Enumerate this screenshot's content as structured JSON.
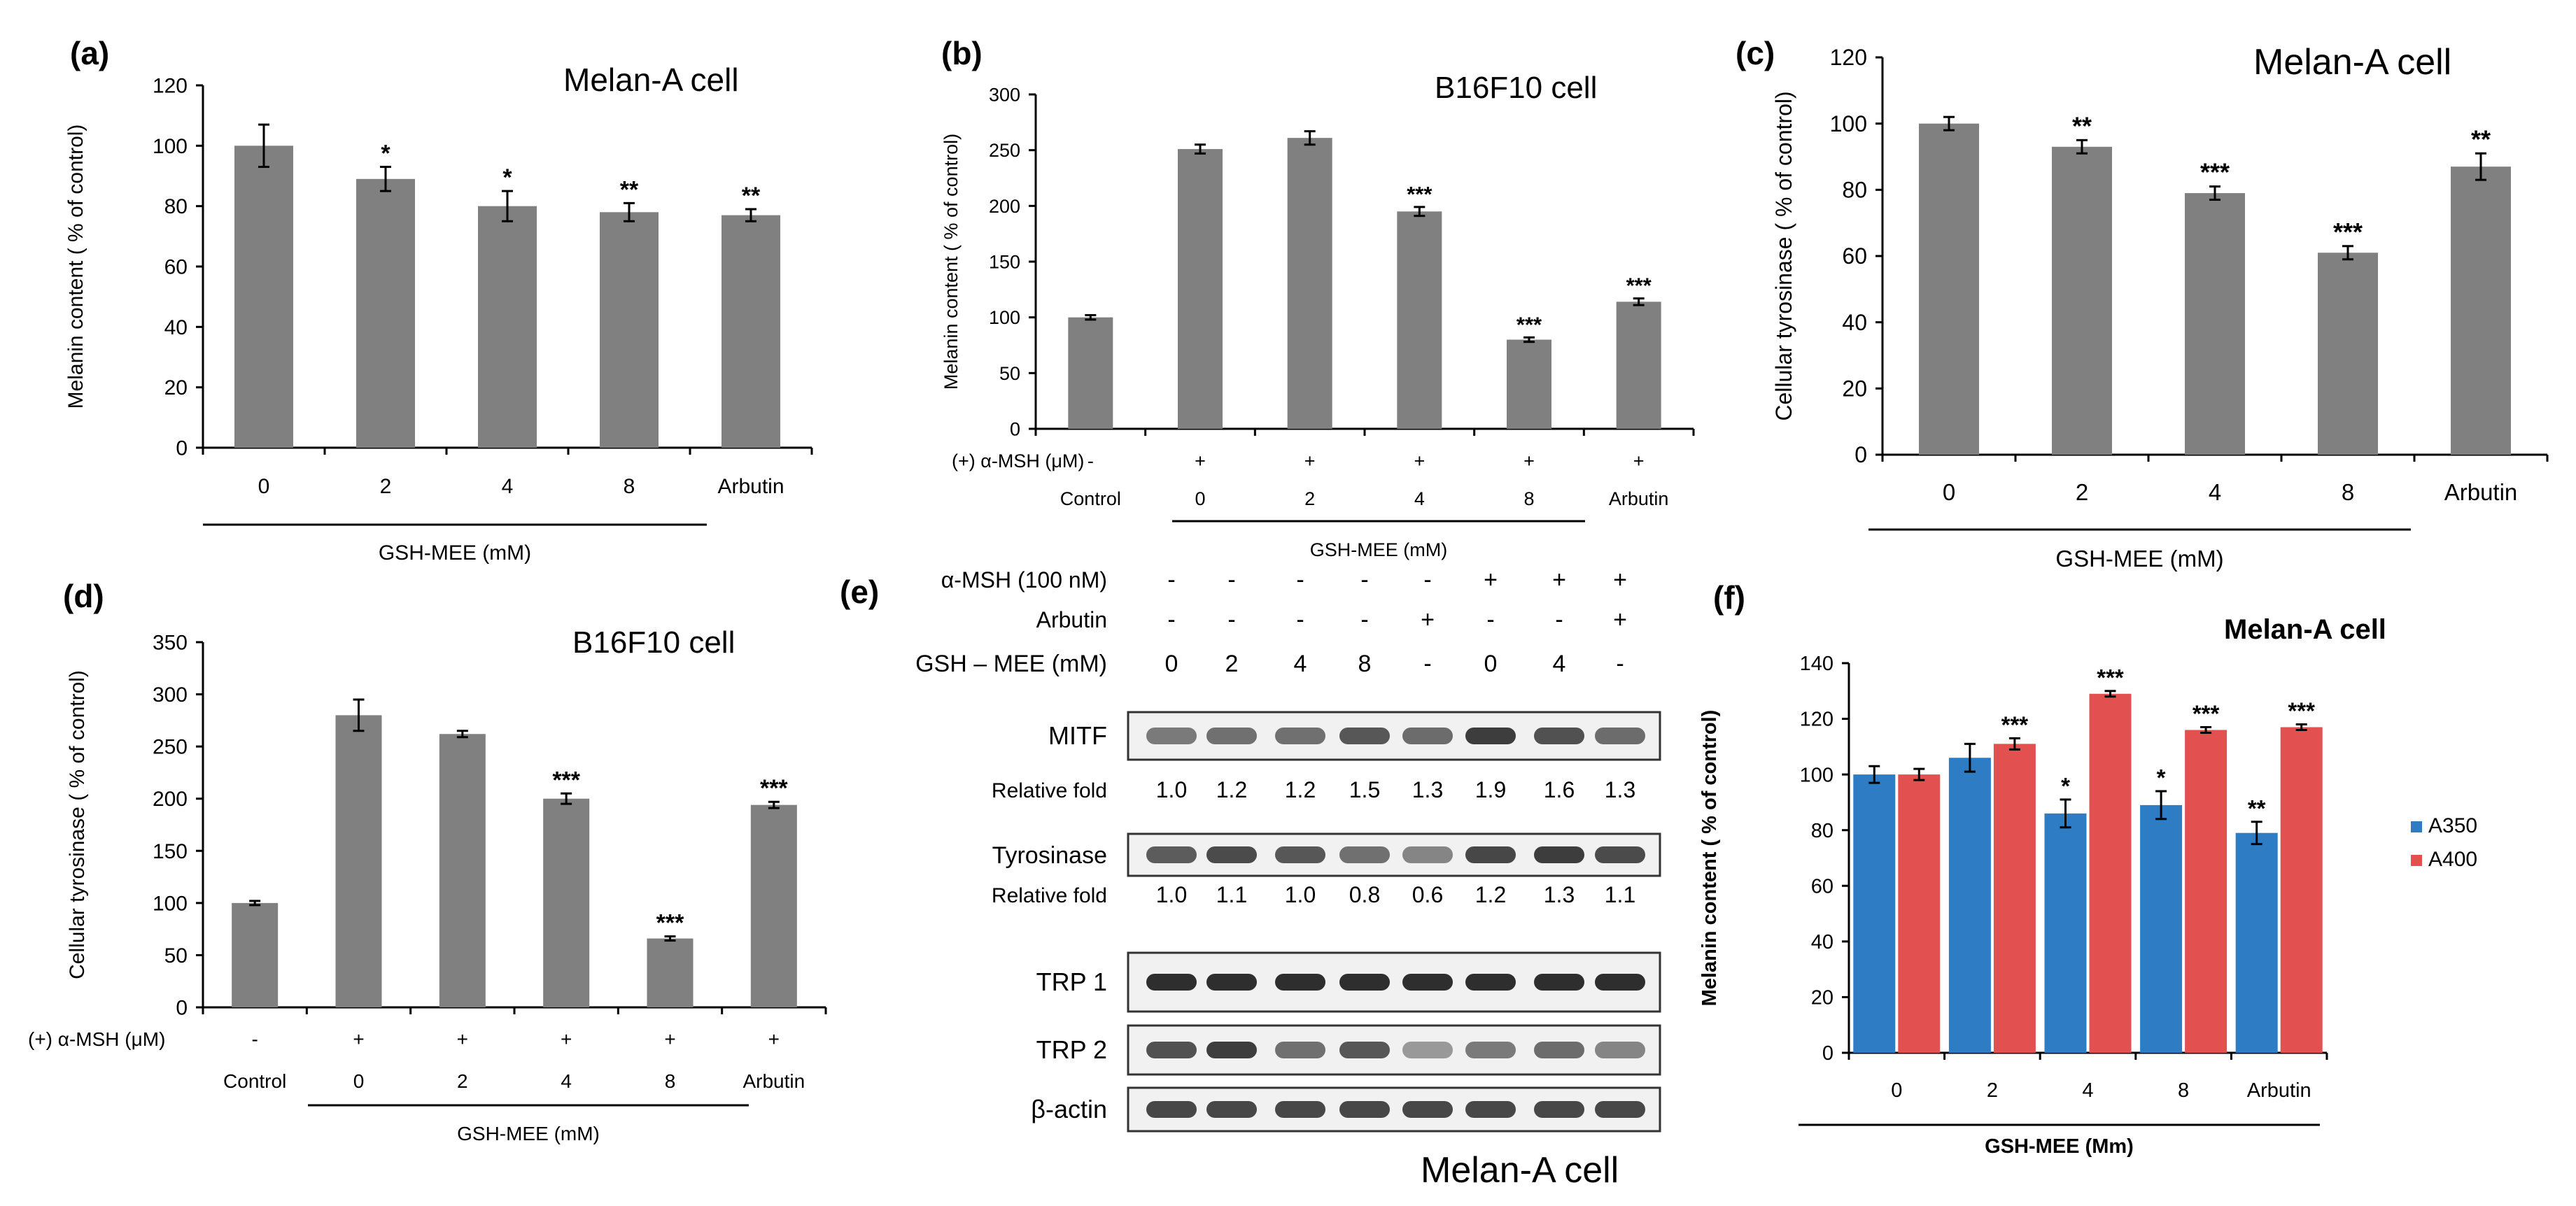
{
  "panels": {
    "a": {
      "letter": "(a)",
      "title": "Melan-A cell"
    },
    "b": {
      "letter": "(b)",
      "title": "B16F10 cell"
    },
    "c": {
      "letter": "(c)",
      "title": "Melan-A cell"
    },
    "d": {
      "letter": "(d)",
      "title": "B16F10 cell"
    },
    "e": {
      "letter": "(e)"
    },
    "f": {
      "letter": "(f)",
      "title": "Melan-A cell"
    }
  },
  "colors": {
    "gray_bar": "#808080",
    "a350": "#2e7cc3",
    "a400": "#e25150",
    "axis": "#000000"
  },
  "chart_data": [
    {
      "id": "a",
      "type": "bar",
      "title": "Melan-A cell",
      "ylabel": "Melanin content ( % of control)",
      "xlabel": "GSH-MEE (mM)",
      "ylim": [
        0,
        120
      ],
      "yticks": [
        0,
        20,
        40,
        60,
        80,
        100,
        120
      ],
      "categories": [
        "0",
        "2",
        "4",
        "8",
        "Arbutin"
      ],
      "values": [
        100,
        89,
        80,
        78,
        77
      ],
      "errors": [
        7,
        4,
        5,
        3,
        2
      ],
      "significance": [
        "",
        "*",
        "*",
        "**",
        "**"
      ]
    },
    {
      "id": "b",
      "type": "bar",
      "title": "B16F10 cell",
      "ylabel": "Melanin content ( % of control)",
      "xlabel": "GSH-MEE (mM)",
      "ylim": [
        0,
        300
      ],
      "yticks": [
        0,
        50,
        100,
        150,
        200,
        250,
        300
      ],
      "row_label": "(+) α-MSH (μM)",
      "treatment_signs": [
        "-",
        "+",
        "+",
        "+",
        "+",
        "+"
      ],
      "categories": [
        "Control",
        "0",
        "2",
        "4",
        "8",
        "Arbutin"
      ],
      "values": [
        100,
        251,
        261,
        195,
        80,
        114
      ],
      "errors": [
        2,
        4,
        6,
        4,
        2,
        3
      ],
      "significance": [
        "",
        "",
        "",
        "***",
        "***",
        "***"
      ]
    },
    {
      "id": "c",
      "type": "bar",
      "title": "Melan-A cell",
      "ylabel": "Cellular tyrosinase ( % of control)",
      "xlabel": "GSH-MEE (mM)",
      "ylim": [
        0,
        120
      ],
      "yticks": [
        0,
        20,
        40,
        60,
        80,
        100,
        120
      ],
      "categories": [
        "0",
        "2",
        "4",
        "8",
        "Arbutin"
      ],
      "values": [
        100,
        93,
        79,
        61,
        87
      ],
      "errors": [
        2,
        2,
        2,
        2,
        4
      ],
      "significance": [
        "",
        "**",
        "***",
        "***",
        "**"
      ]
    },
    {
      "id": "d",
      "type": "bar",
      "title": "B16F10 cell",
      "ylabel": "Cellular tyrosinase ( % of control)",
      "xlabel": "GSH-MEE (mM)",
      "ylim": [
        0,
        350
      ],
      "yticks": [
        0,
        50,
        100,
        150,
        200,
        250,
        300,
        350
      ],
      "row_label": "(+) α-MSH (μM)",
      "treatment_signs": [
        "-",
        "+",
        "+",
        "+",
        "+",
        "+"
      ],
      "categories": [
        "Control",
        "0",
        "2",
        "4",
        "8",
        "Arbutin"
      ],
      "values": [
        100,
        280,
        262,
        200,
        66,
        194
      ],
      "errors": [
        2,
        15,
        3,
        5,
        2,
        3
      ],
      "significance": [
        "",
        "",
        "",
        "***",
        "***",
        "***"
      ]
    },
    {
      "id": "f",
      "type": "bar",
      "title": "Melan-A cell",
      "ylabel": "Melanin content ( % of control)",
      "xlabel": "GSH-MEE (Mm)",
      "ylim": [
        0,
        140
      ],
      "yticks": [
        0,
        20,
        40,
        60,
        80,
        100,
        120,
        140
      ],
      "legend": "right",
      "categories": [
        "0",
        "2",
        "4",
        "8",
        "Arbutin"
      ],
      "series": [
        {
          "name": "A350",
          "values": [
            100,
            106,
            86,
            89,
            79
          ],
          "errors": [
            3,
            5,
            5,
            5,
            4
          ],
          "significance": [
            "",
            "",
            "*",
            "*",
            "**"
          ]
        },
        {
          "name": "A400",
          "values": [
            100,
            111,
            129,
            116,
            117
          ],
          "errors": [
            2,
            2,
            1,
            1,
            1
          ],
          "significance": [
            "",
            "***",
            "***",
            "***",
            "***"
          ]
        }
      ]
    }
  ],
  "blot": {
    "treatments": [
      {
        "label": "α-MSH (100 nM)",
        "values": [
          "-",
          "-",
          "-",
          "-",
          "-",
          "+",
          "+",
          "+"
        ]
      },
      {
        "label": "Arbutin",
        "values": [
          "-",
          "-",
          "-",
          "-",
          "+",
          "-",
          "-",
          "+"
        ]
      },
      {
        "label": "GSH – MEE (mM)",
        "values": [
          "0",
          "2",
          "4",
          "8",
          "-",
          "0",
          "4",
          "-"
        ]
      }
    ],
    "bands": [
      {
        "label": "MITF",
        "intensity": [
          0.55,
          0.6,
          0.6,
          0.72,
          0.62,
          0.85,
          0.75,
          0.62
        ]
      },
      {
        "label": "Tyrosinase",
        "intensity": [
          0.7,
          0.78,
          0.72,
          0.6,
          0.5,
          0.8,
          0.85,
          0.78
        ]
      },
      {
        "label": "TRP 1",
        "intensity": [
          0.92,
          0.92,
          0.92,
          0.92,
          0.92,
          0.92,
          0.92,
          0.92
        ]
      },
      {
        "label": "TRP 2",
        "intensity": [
          0.75,
          0.85,
          0.6,
          0.72,
          0.4,
          0.55,
          0.62,
          0.5
        ]
      },
      {
        "label": "β-actin",
        "intensity": [
          0.8,
          0.8,
          0.8,
          0.8,
          0.8,
          0.8,
          0.8,
          0.8
        ]
      }
    ],
    "relative_fold_label": "Relative fold",
    "mitf_fold": [
      "1.0",
      "1.2",
      "1.2",
      "1.5",
      "1.3",
      "1.9",
      "1.6",
      "1.3"
    ],
    "tyrosinase_fold": [
      "1.0",
      "1.1",
      "1.0",
      "0.8",
      "0.6",
      "1.2",
      "1.3",
      "1.1"
    ],
    "cell_label": "Melan-A cell"
  }
}
